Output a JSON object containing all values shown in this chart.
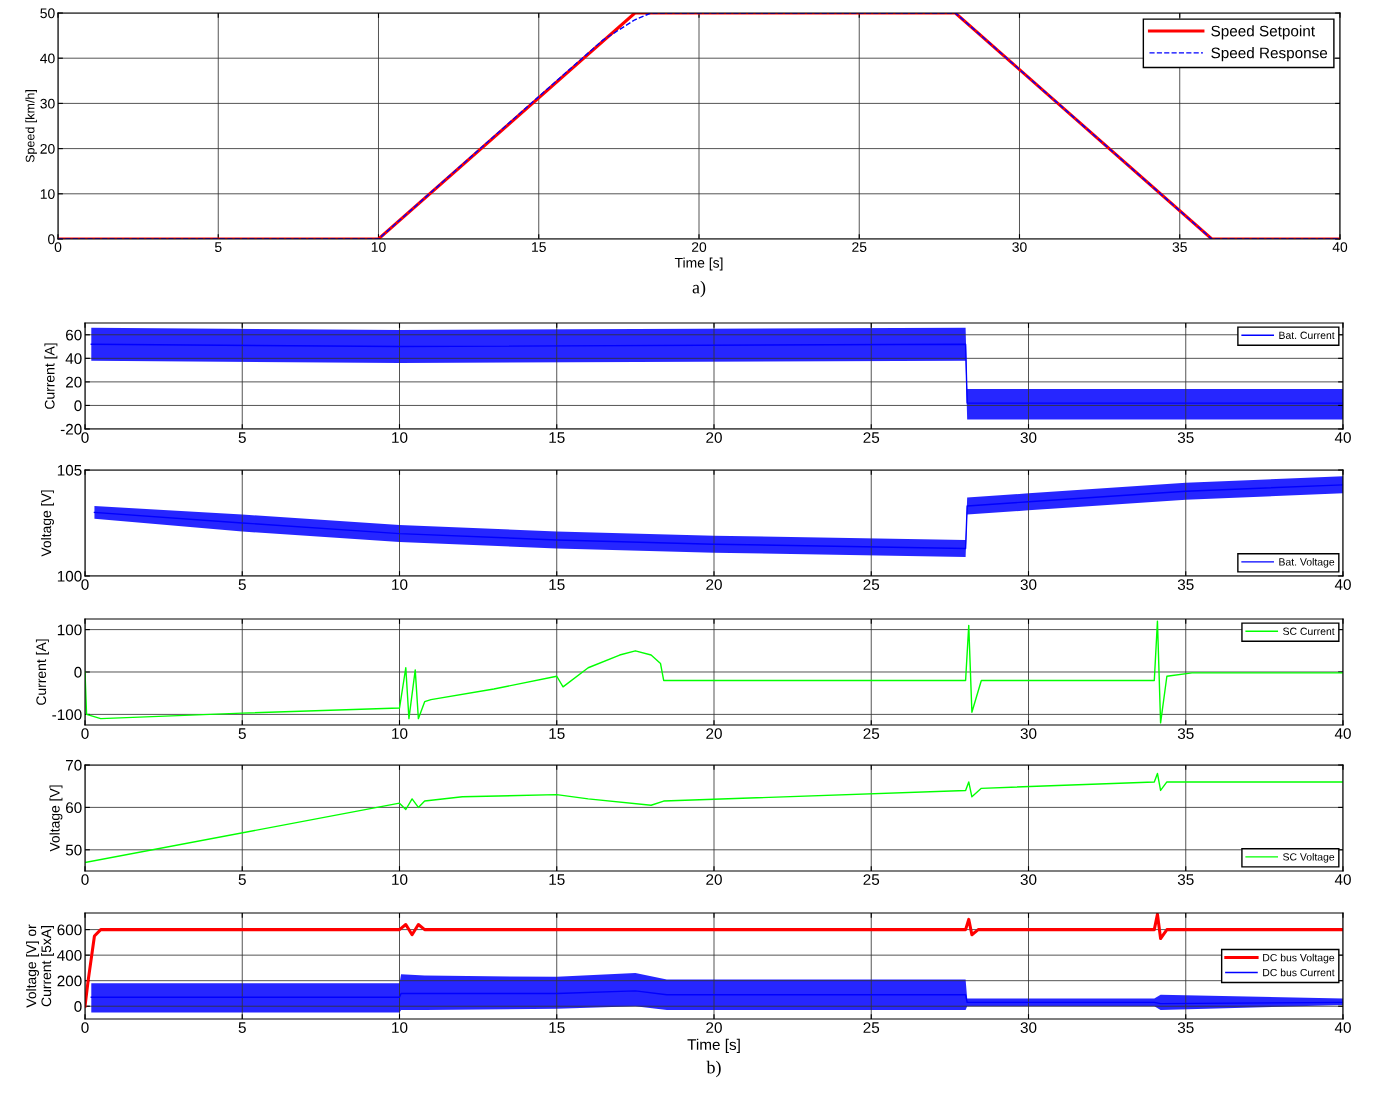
{
  "chart_data": [
    {
      "type": "line",
      "xlabel": "Time [s]",
      "ylabel": "Speed [km/h]",
      "xlim": [
        0,
        40
      ],
      "ylim": [
        0,
        50
      ],
      "xticks": [
        0,
        5,
        10,
        15,
        20,
        25,
        30,
        35,
        40
      ],
      "yticks": [
        0,
        10,
        20,
        30,
        40,
        50
      ],
      "grid": true,
      "legend": "top right",
      "annotations": [
        "a)"
      ],
      "series": [
        {
          "name": "Speed Setpoint",
          "color": "#ff0000",
          "line_style": "solid",
          "x": [
            0,
            10,
            18,
            28,
            36,
            40
          ],
          "values": [
            0,
            0,
            50,
            50,
            0,
            0
          ]
        },
        {
          "name": "Speed Response",
          "color": "#0000ff",
          "line_style": "dashed",
          "x": [
            0,
            10,
            15,
            17,
            18,
            18.5,
            28,
            36,
            40
          ],
          "values": [
            0,
            0,
            31.5,
            44,
            48.5,
            50,
            50,
            0,
            0
          ]
        }
      ]
    },
    {
      "type": "line",
      "ylabel": "Current [A]",
      "xlim": [
        0,
        40
      ],
      "ylim": [
        -20,
        70
      ],
      "xticks": [
        0,
        5,
        10,
        15,
        20,
        25,
        30,
        35,
        40
      ],
      "yticks": [
        -20,
        0,
        20,
        40,
        60
      ],
      "grid": true,
      "legend": "top right",
      "series": [
        {
          "name": "Bat. Current",
          "color": "#0000ff",
          "x": [
            0.2,
            10,
            28,
            28.05,
            34,
            40
          ],
          "values": [
            52,
            50,
            52,
            2,
            2,
            2
          ],
          "lower": [
            38,
            36,
            38,
            -12,
            -12,
            -12
          ],
          "upper": [
            66,
            64,
            66,
            14,
            14,
            14
          ]
        }
      ]
    },
    {
      "type": "line",
      "ylabel": "Voltage [V]",
      "xlim": [
        0,
        40
      ],
      "ylim": [
        100,
        105
      ],
      "xticks": [
        0,
        5,
        10,
        15,
        20,
        25,
        30,
        35,
        40
      ],
      "yticks": [
        100,
        105
      ],
      "grid": true,
      "legend": "bottom right",
      "series": [
        {
          "name": "Bat. Voltage",
          "color": "#0000ff",
          "x": [
            0.3,
            5,
            10,
            15,
            20,
            28,
            28.05,
            30,
            35,
            40
          ],
          "values": [
            103.0,
            102.5,
            102.0,
            101.7,
            101.5,
            101.3,
            103.3,
            103.5,
            104.0,
            104.3
          ],
          "lower": [
            102.7,
            102.1,
            101.6,
            101.3,
            101.1,
            100.9,
            102.9,
            103.1,
            103.6,
            103.9
          ],
          "upper": [
            103.3,
            102.9,
            102.4,
            102.1,
            101.9,
            101.7,
            103.7,
            103.9,
            104.4,
            104.7
          ]
        }
      ]
    },
    {
      "type": "line",
      "ylabel": "Current [A]",
      "xlim": [
        0,
        40
      ],
      "ylim": [
        -125,
        125
      ],
      "xticks": [
        0,
        5,
        10,
        15,
        20,
        25,
        30,
        35,
        40
      ],
      "yticks": [
        -100,
        0,
        100
      ],
      "grid": true,
      "legend": "top right",
      "series": [
        {
          "name": "SC Current",
          "color": "#00ff00",
          "x": [
            0,
            0.05,
            0.5,
            5,
            10,
            10.2,
            10.3,
            10.5,
            10.6,
            10.8,
            11,
            13,
            15,
            15.2,
            16,
            17,
            17.5,
            18,
            18.3,
            18.4,
            28,
            28.1,
            28.2,
            28.5,
            34,
            34.1,
            34.2,
            34.4,
            35.2,
            40
          ],
          "values": [
            0,
            -100,
            -110,
            -97,
            -85,
            10,
            -110,
            5,
            -110,
            -70,
            -65,
            -40,
            -10,
            -35,
            10,
            40,
            50,
            40,
            20,
            -20,
            -20,
            110,
            -95,
            -20,
            -20,
            120,
            -120,
            -10,
            -2,
            -2
          ]
        }
      ]
    },
    {
      "type": "line",
      "ylabel": "Voltage [V]",
      "xlim": [
        0,
        40
      ],
      "ylim": [
        45,
        70
      ],
      "xticks": [
        0,
        5,
        10,
        15,
        20,
        25,
        30,
        35,
        40
      ],
      "yticks": [
        50,
        60,
        70
      ],
      "grid": true,
      "legend": "bottom right",
      "series": [
        {
          "name": "SC Voltage",
          "color": "#00ff00",
          "x": [
            0,
            10,
            10.2,
            10.4,
            10.6,
            10.8,
            12,
            15,
            16,
            18,
            18.4,
            28,
            28.1,
            28.2,
            28.5,
            34,
            34.1,
            34.2,
            34.4,
            40
          ],
          "values": [
            47,
            61,
            59.5,
            62,
            60,
            61.5,
            62.5,
            63,
            62,
            60.5,
            61.5,
            64,
            66,
            62.5,
            64.5,
            66,
            68,
            64,
            66,
            66
          ]
        }
      ]
    },
    {
      "type": "line",
      "xlabel": "Time [s]",
      "ylabel": "Voltage [V] or\nCurrent [5xA]",
      "xlim": [
        0,
        40
      ],
      "ylim": [
        -100,
        730
      ],
      "xticks": [
        0,
        5,
        10,
        15,
        20,
        25,
        30,
        35,
        40
      ],
      "yticks": [
        0,
        200,
        400,
        600
      ],
      "grid": true,
      "legend": "right",
      "annotations": [
        "b)"
      ],
      "series": [
        {
          "name": "DC bus Voltage",
          "color": "#ff0000",
          "x": [
            0,
            0.1,
            0.3,
            0.5,
            10,
            10.2,
            10.4,
            10.6,
            10.8,
            28,
            28.1,
            28.2,
            28.4,
            34,
            34.1,
            34.2,
            34.4,
            40
          ],
          "values": [
            0,
            200,
            550,
            600,
            600,
            640,
            560,
            640,
            600,
            600,
            680,
            560,
            600,
            600,
            720,
            530,
            600,
            600
          ]
        },
        {
          "name": "DC bus Current",
          "color": "#0000ff",
          "x": [
            0.2,
            10,
            10.05,
            10.8,
            15,
            17.5,
            18.5,
            28,
            28.05,
            34,
            34.2,
            40
          ],
          "values": [
            70,
            70,
            100,
            100,
            100,
            120,
            90,
            90,
            30,
            30,
            20,
            30
          ],
          "lower": [
            -50,
            -50,
            -30,
            -30,
            -20,
            0,
            -30,
            -30,
            0,
            0,
            -30,
            10
          ],
          "upper": [
            180,
            180,
            250,
            240,
            230,
            260,
            210,
            210,
            60,
            60,
            90,
            60
          ]
        }
      ]
    }
  ]
}
